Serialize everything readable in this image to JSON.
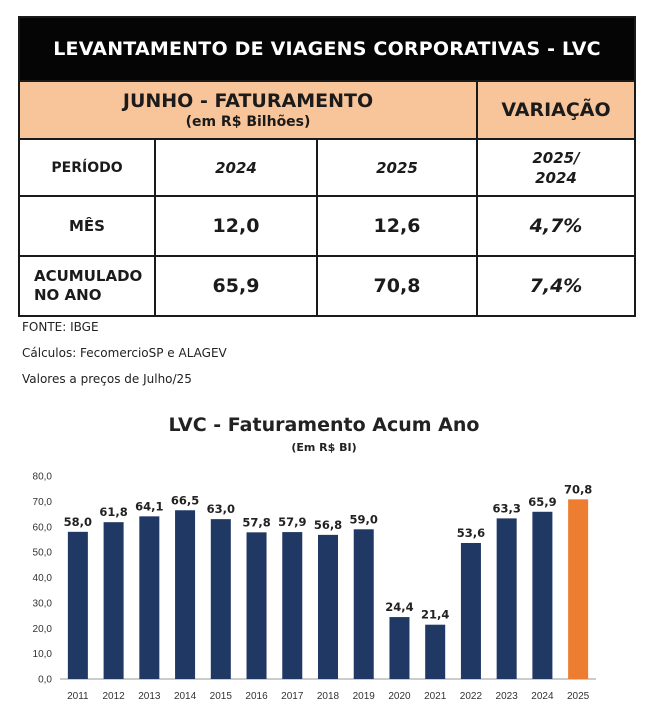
{
  "table": {
    "title": "LEVANTAMENTO DE VIAGENS CORPORATIVAS - LVC",
    "header_main": "JUNHO - FATURAMENTO",
    "header_sub": "(em R$ Bilhões)",
    "header_variation": "VARIAÇÃO",
    "period_label": "PERÍODO",
    "year_a": "2024",
    "year_b": "2025",
    "var_label_line1": "2025/",
    "var_label_line2": "2024",
    "rows": [
      {
        "label_line1": "MÊS",
        "label_line2": "",
        "a": "12,0",
        "b": "12,6",
        "var": "4,7%"
      },
      {
        "label_line1": "ACUMULADO",
        "label_line2": "NO ANO",
        "a": "65,9",
        "b": "70,8",
        "var": "7,4%"
      }
    ]
  },
  "notes": {
    "source": "FONTE: IBGE",
    "calc": "Cálculos: FecomercioSP e ALAGEV",
    "prices": "Valores a preços de Julho/25"
  },
  "colors": {
    "bar": "#203864",
    "highlight": "#ed7d31",
    "header_fill": "#f8c59a",
    "title_fill": "#050505"
  },
  "chart_data": {
    "type": "bar",
    "title": "LVC - Faturamento Acum Ano",
    "subtitle": "(Em R$ BI)",
    "categories": [
      "2011",
      "2012",
      "2013",
      "2014",
      "2015",
      "2016",
      "2017",
      "2018",
      "2019",
      "2020",
      "2021",
      "2022",
      "2023",
      "2024",
      "2025"
    ],
    "values": [
      58.0,
      61.8,
      64.1,
      66.5,
      63.0,
      57.8,
      57.9,
      56.8,
      59.0,
      24.4,
      21.4,
      53.6,
      63.3,
      65.9,
      70.8
    ],
    "value_labels": [
      "58,0",
      "61,8",
      "64,1",
      "66,5",
      "63,0",
      "57,8",
      "57,9",
      "56,8",
      "59,0",
      "24,4",
      "21,4",
      "53,6",
      "63,3",
      "65,9",
      "70,8"
    ],
    "highlight_category": "2025",
    "ylim": [
      0,
      80
    ],
    "yticks": [
      "0,0",
      "10,0",
      "20,0",
      "30,0",
      "40,0",
      "50,0",
      "60,0",
      "70,0",
      "80,0"
    ],
    "grid": false,
    "legend": "none"
  }
}
